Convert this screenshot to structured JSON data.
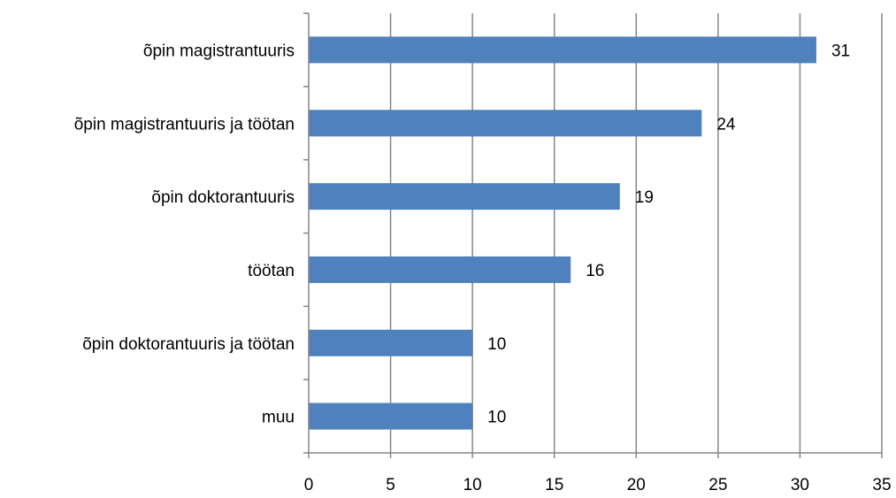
{
  "chart_data": {
    "type": "bar",
    "orientation": "horizontal",
    "title": "",
    "xlabel": "",
    "ylabel": "",
    "categories": [
      "õpin magistrantuuris",
      "õpin magistrantuuris ja töötan",
      "õpin doktorantuuris",
      "töötan",
      "õpin doktorantuuris ja töötan",
      "muu"
    ],
    "values": [
      31,
      24,
      19,
      16,
      10,
      10
    ],
    "data_labels": [
      "31",
      "24",
      "19",
      "16",
      "10",
      "10"
    ],
    "xlim": [
      0,
      35
    ],
    "x_ticks": [
      "0",
      "5",
      "10",
      "15",
      "20",
      "25",
      "30",
      "35"
    ],
    "grid": "vertical",
    "legend": "none",
    "bar_color": "#4F81BD",
    "grid_color": "#868686"
  }
}
